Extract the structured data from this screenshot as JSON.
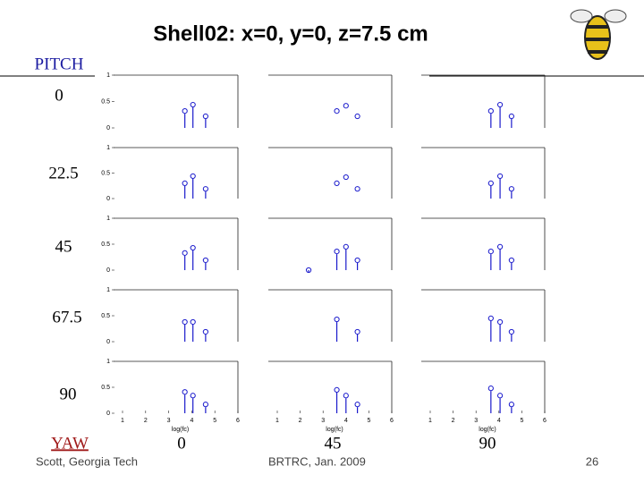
{
  "slide": {
    "title": "Shell02: x=0, y=0, z=7.5 cm",
    "pitch_label": "PITCH",
    "pitch_values": [
      "0",
      "22.5",
      "45",
      "67.5",
      "90"
    ],
    "yaw_label": "YAW",
    "yaw_values": [
      "0",
      "45",
      "90"
    ],
    "footer_left": "Scott, Georgia Tech",
    "footer_center": "BRTRC, Jan. 2009",
    "page_number": "26"
  },
  "chart_data": [
    {
      "type": "stem",
      "x": [
        3.7,
        4.05,
        4.6
      ],
      "values": [
        0.32,
        0.44,
        0.22
      ],
      "stems": true,
      "color": "#1a1acc",
      "xlim": [
        1,
        6
      ],
      "ylim": [
        0,
        1
      ],
      "yticks": [
        0,
        0.5,
        1
      ]
    },
    {
      "type": "stem",
      "x": [
        3.6,
        4.0,
        4.5
      ],
      "values": [
        0.32,
        0.42,
        0.22
      ],
      "stems": false,
      "color": "#1a1acc",
      "xlim": [
        1,
        6
      ],
      "ylim": [
        0,
        1
      ]
    },
    {
      "type": "stem",
      "x": [
        3.65,
        4.05,
        4.55
      ],
      "values": [
        0.32,
        0.44,
        0.22
      ],
      "stems": true,
      "color": "#1a1acc",
      "xlim": [
        1,
        6
      ],
      "ylim": [
        0,
        1
      ]
    },
    {
      "type": "stem",
      "x": [
        3.7,
        4.05,
        4.6
      ],
      "values": [
        0.3,
        0.44,
        0.19
      ],
      "stems": true,
      "color": "#1a1acc",
      "xlim": [
        1,
        6
      ],
      "ylim": [
        0,
        1
      ],
      "yticks": [
        0,
        0.5,
        1
      ]
    },
    {
      "type": "stem",
      "x": [
        3.6,
        4.0,
        4.5
      ],
      "values": [
        0.3,
        0.42,
        0.19
      ],
      "stems": false,
      "color": "#1a1acc",
      "xlim": [
        1,
        6
      ],
      "ylim": [
        0,
        1
      ]
    },
    {
      "type": "stem",
      "x": [
        3.65,
        4.05,
        4.55
      ],
      "values": [
        0.3,
        0.44,
        0.19
      ],
      "stems": true,
      "color": "#1a1acc",
      "xlim": [
        1,
        6
      ],
      "ylim": [
        0,
        1
      ]
    },
    {
      "type": "stem",
      "x": [
        3.7,
        4.05,
        4.6
      ],
      "values": [
        0.33,
        0.43,
        0.19
      ],
      "stems": true,
      "color": "#1a1acc",
      "xlim": [
        1,
        6
      ],
      "ylim": [
        0,
        1
      ],
      "yticks": [
        0,
        0.5,
        1
      ]
    },
    {
      "type": "stem",
      "x": [
        2.37,
        3.6,
        4.0,
        4.5
      ],
      "values": [
        0.0,
        0.36,
        0.45,
        0.19
      ],
      "stems": true,
      "color": "#1a1acc",
      "xlim": [
        1,
        6
      ],
      "ylim": [
        0,
        1
      ]
    },
    {
      "type": "stem",
      "x": [
        3.65,
        4.05,
        4.55
      ],
      "values": [
        0.36,
        0.45,
        0.19
      ],
      "stems": true,
      "color": "#1a1acc",
      "xlim": [
        1,
        6
      ],
      "ylim": [
        0,
        1
      ]
    },
    {
      "type": "stem",
      "x": [
        3.7,
        4.05,
        4.6
      ],
      "values": [
        0.38,
        0.38,
        0.19
      ],
      "stems": true,
      "color": "#1a1acc",
      "xlim": [
        1,
        6
      ],
      "ylim": [
        0,
        1
      ],
      "yticks": [
        0,
        0.5,
        1
      ]
    },
    {
      "type": "stem",
      "x": [
        3.6,
        4.5
      ],
      "values": [
        0.43,
        0.19
      ],
      "stems": true,
      "color": "#1a1acc",
      "xlim": [
        1,
        6
      ],
      "ylim": [
        0,
        1
      ]
    },
    {
      "type": "stem",
      "x": [
        3.65,
        4.05,
        4.55
      ],
      "values": [
        0.45,
        0.38,
        0.19
      ],
      "stems": true,
      "color": "#1a1acc",
      "xlim": [
        1,
        6
      ],
      "ylim": [
        0,
        1
      ]
    },
    {
      "type": "stem",
      "x": [
        3.7,
        4.05,
        4.6
      ],
      "values": [
        0.41,
        0.34,
        0.17
      ],
      "stems": true,
      "color": "#1a1acc",
      "xlim": [
        1,
        6
      ],
      "ylim": [
        0,
        1
      ],
      "yticks": [
        0,
        0.5,
        1
      ],
      "xticks": [
        1,
        2,
        3,
        4,
        5,
        6
      ],
      "xlabel": "log(fc)"
    },
    {
      "type": "stem",
      "x": [
        3.6,
        4.0,
        4.5
      ],
      "values": [
        0.45,
        0.34,
        0.17
      ],
      "stems": true,
      "color": "#1a1acc",
      "xlim": [
        1,
        6
      ],
      "ylim": [
        0,
        1
      ],
      "xticks": [
        1,
        2,
        3,
        4,
        5,
        6
      ],
      "xlabel": "log(fc)"
    },
    {
      "type": "stem",
      "x": [
        3.65,
        4.05,
        4.55
      ],
      "values": [
        0.48,
        0.34,
        0.17
      ],
      "stems": true,
      "color": "#1a1acc",
      "xlim": [
        1,
        6
      ],
      "ylim": [
        0,
        1
      ],
      "xticks": [
        1,
        2,
        3,
        4,
        5,
        6
      ],
      "xlabel": "log(fc)"
    }
  ]
}
